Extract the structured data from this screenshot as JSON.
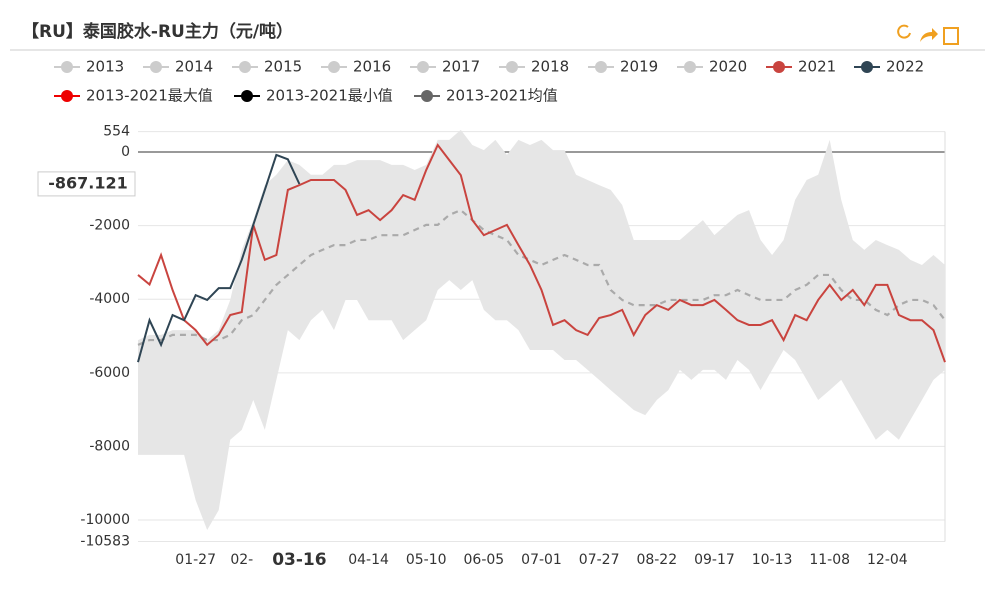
{
  "chart_data": {
    "type": "line",
    "title": "【RU】泰国胶水-RU主力（元/吨）",
    "categories": [
      null,
      null,
      null,
      null,
      null,
      "01-27",
      null,
      null,
      null,
      "02-",
      null,
      null,
      null,
      null,
      "03-16",
      null,
      null,
      null,
      null,
      null,
      "04-14",
      null,
      null,
      null,
      null,
      "05-10",
      null,
      null,
      null,
      null,
      "06-05",
      null,
      null,
      null,
      null,
      "07-01",
      null,
      null,
      null,
      null,
      "07-27",
      null,
      null,
      null,
      null,
      "08-22",
      null,
      null,
      null,
      null,
      "09-17",
      null,
      null,
      null,
      null,
      "10-13",
      null,
      null,
      null,
      null,
      "11-08",
      null,
      null,
      null,
      null,
      "12-04",
      null,
      null,
      null,
      null,
      null
    ],
    "ylim": [
      -10583,
      554
    ],
    "yticks": [
      554,
      0,
      -2000,
      -4000,
      -6000,
      -8000,
      -10000,
      -10583
    ],
    "grid": true,
    "band_between": [
      "2013-2021最大值",
      "2013-2021最小值"
    ],
    "axis_pointer": {
      "index": 14,
      "value": -867.121
    },
    "inactive_series": [
      {
        "name": "2013"
      },
      {
        "name": "2014"
      },
      {
        "name": "2015"
      },
      {
        "name": "2016"
      },
      {
        "name": "2017"
      },
      {
        "name": "2018"
      },
      {
        "name": "2019"
      },
      {
        "name": "2020"
      }
    ],
    "series": [
      {
        "name": "2021",
        "color": "#c9443f",
        "values": [
          -3340,
          -3600,
          -2800,
          -3750,
          -4570,
          -4840,
          -5240,
          -4970,
          -4430,
          -4350,
          -1980,
          -2930,
          -2800,
          -1030,
          -900,
          -760,
          -760,
          -760,
          -1030,
          -1710,
          -1580,
          -1850,
          -1580,
          -1170,
          -1300,
          -490,
          190,
          -220,
          -630,
          -1850,
          -2260,
          -2120,
          -1980,
          -2530,
          -3070,
          -3750,
          -4700,
          -4570,
          -4840,
          -4970,
          -4510,
          -4430,
          -4290,
          -4970,
          -4430,
          -4160,
          -4290,
          -4020,
          -4160,
          -4160,
          -4020,
          -4290,
          -4570,
          -4700,
          -4700,
          -4570,
          -5110,
          -4430,
          -4570,
          -4020,
          -3610,
          -4020,
          -3750,
          -4160,
          -3610,
          -3610,
          -4430,
          -4570,
          -4570,
          -4840,
          -5710
        ]
      },
      {
        "name": "2022",
        "color": "#2f4554",
        "values": [
          -5710,
          -4570,
          -5240,
          -4430,
          -4570,
          -3890,
          -4020,
          -3700,
          -3700,
          -2930,
          -1980,
          -1030,
          -80,
          -200,
          -870,
          null,
          null,
          null,
          null,
          null,
          null,
          null,
          null,
          null,
          null,
          null,
          null,
          null,
          null,
          null,
          null,
          null,
          null,
          null,
          null,
          null,
          null,
          null,
          null,
          null,
          null,
          null,
          null,
          null,
          null,
          null,
          null,
          null,
          null,
          null,
          null,
          null,
          null,
          null,
          null,
          null,
          null,
          null,
          null,
          null,
          null,
          null,
          null,
          null,
          null,
          null,
          null,
          null,
          null,
          null,
          null
        ]
      },
      {
        "name": "2013-2021最大值",
        "color": "#ee0000",
        "values": [
          -5110,
          -4970,
          -4970,
          -4840,
          -4840,
          -4840,
          -5110,
          -4840,
          -4020,
          -2660,
          -1850,
          -900,
          -620,
          -220,
          -350,
          -620,
          -620,
          -350,
          -350,
          -220,
          -220,
          -220,
          -350,
          -350,
          -490,
          -350,
          330,
          330,
          600,
          190,
          50,
          330,
          -80,
          330,
          190,
          330,
          50,
          50,
          -620,
          -760,
          -900,
          -1030,
          -1440,
          -2390,
          -2390,
          -2390,
          -2390,
          -2390,
          -2120,
          -1850,
          -2260,
          -1980,
          -1710,
          -1580,
          -2390,
          -2800,
          -2390,
          -1300,
          -760,
          -620,
          330,
          -1300,
          -2390,
          -2660,
          -2390,
          -2530,
          -2660,
          -2930,
          -3070,
          -2800,
          -3070
        ]
      },
      {
        "name": "2013-2021最小值",
        "color": "#000000",
        "values": [
          -8230,
          -8230,
          -8230,
          -8230,
          -8230,
          -9460,
          -10270,
          -9730,
          -7820,
          -7550,
          -6740,
          -7550,
          -6190,
          -4840,
          -5110,
          -4570,
          -4290,
          -4840,
          -4020,
          -4020,
          -4570,
          -4570,
          -4570,
          -5110,
          -4840,
          -4570,
          -3750,
          -3480,
          -3750,
          -3480,
          -4290,
          -4570,
          -4570,
          -4840,
          -5380,
          -5380,
          -5380,
          -5650,
          -5650,
          -5920,
          -6190,
          -6470,
          -6740,
          -7010,
          -7150,
          -6740,
          -6470,
          -5920,
          -6190,
          -5920,
          -5920,
          -6190,
          -5650,
          -5920,
          -6470,
          -5920,
          -5380,
          -5650,
          -6190,
          -6740,
          -6470,
          -6190,
          -6740,
          -7280,
          -7820,
          -7550,
          -7820,
          -7280,
          -6740,
          -6190,
          -5920
        ]
      },
      {
        "name": "2013-2021均值",
        "color": "#666666",
        "dashed": true,
        "values": [
          -5240,
          -5110,
          -5110,
          -4970,
          -4970,
          -4970,
          -5110,
          -5110,
          -4970,
          -4570,
          -4430,
          -4020,
          -3610,
          -3340,
          -3070,
          -2800,
          -2660,
          -2530,
          -2530,
          -2390,
          -2390,
          -2260,
          -2260,
          -2260,
          -2120,
          -1980,
          -1980,
          -1710,
          -1580,
          -1850,
          -2120,
          -2260,
          -2390,
          -2800,
          -2930,
          -3070,
          -2930,
          -2800,
          -2930,
          -3070,
          -3070,
          -3750,
          -4020,
          -4160,
          -4160,
          -4160,
          -4020,
          -4020,
          -4020,
          -4020,
          -3890,
          -3890,
          -3750,
          -3890,
          -4020,
          -4020,
          -4020,
          -3750,
          -3610,
          -3340,
          -3340,
          -3750,
          -4020,
          -4020,
          -4290,
          -4430,
          -4160,
          -4020,
          -4020,
          -4160,
          -4570
        ]
      }
    ]
  }
}
